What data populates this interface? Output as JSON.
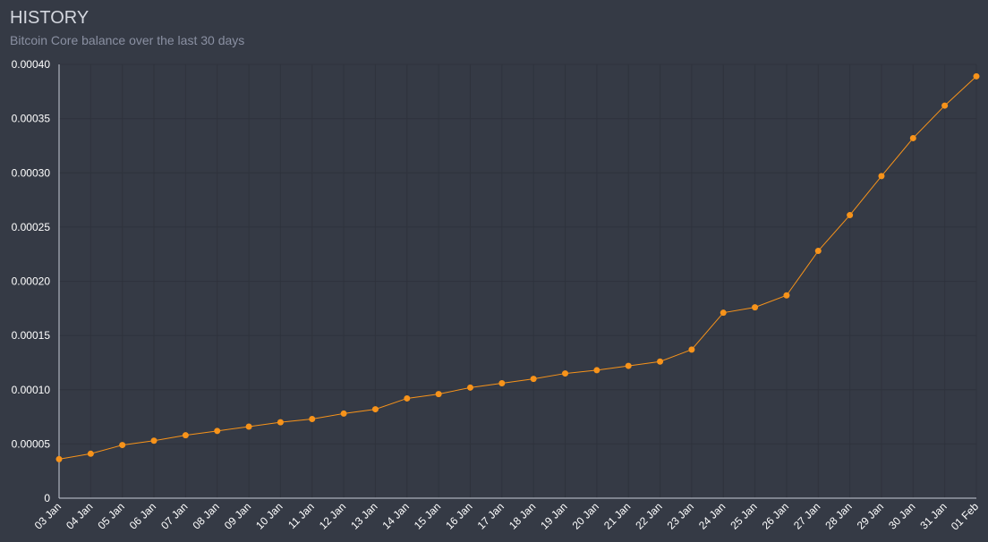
{
  "chart_data": {
    "type": "line",
    "title": "HISTORY",
    "subtitle": "Bitcoin Core balance over the last 30 days",
    "categories": [
      "03 Jan",
      "04 Jan",
      "05 Jan",
      "06 Jan",
      "07 Jan",
      "08 Jan",
      "09 Jan",
      "10 Jan",
      "11 Jan",
      "12 Jan",
      "13 Jan",
      "14 Jan",
      "15 Jan",
      "16 Jan",
      "17 Jan",
      "18 Jan",
      "19 Jan",
      "20 Jan",
      "21 Jan",
      "22 Jan",
      "23 Jan",
      "24 Jan",
      "25 Jan",
      "26 Jan",
      "27 Jan",
      "28 Jan",
      "29 Jan",
      "30 Jan",
      "31 Jan",
      "01 Feb"
    ],
    "values": [
      3.6e-05,
      4.1e-05,
      4.9e-05,
      5.3e-05,
      5.8e-05,
      6.2e-05,
      6.6e-05,
      7e-05,
      7.3e-05,
      7.8e-05,
      8.2e-05,
      9.2e-05,
      9.6e-05,
      0.000102,
      0.000106,
      0.00011,
      0.000115,
      0.000118,
      0.000122,
      0.000126,
      0.000137,
      0.000171,
      0.000176,
      0.000187,
      0.000228,
      0.000261,
      0.000297,
      0.000332,
      0.000362,
      0.000389
    ],
    "color": "#f7931a",
    "ylim": [
      0,
      0.0004
    ],
    "yticks": [
      0,
      {
        "value": 5e-05,
        "label": "0.00005"
      },
      {
        "value": 0.0001,
        "label": "0.00010"
      },
      {
        "value": 0.00015,
        "label": "0.00015"
      },
      {
        "value": 0.0002,
        "label": "0.00020"
      },
      {
        "value": 0.00025,
        "label": "0.00025"
      },
      {
        "value": 0.0003,
        "label": "0.00030"
      },
      {
        "value": 0.00035,
        "label": "0.00035"
      },
      {
        "value": 0.0004,
        "label": "0.00040"
      }
    ],
    "grid": true
  }
}
